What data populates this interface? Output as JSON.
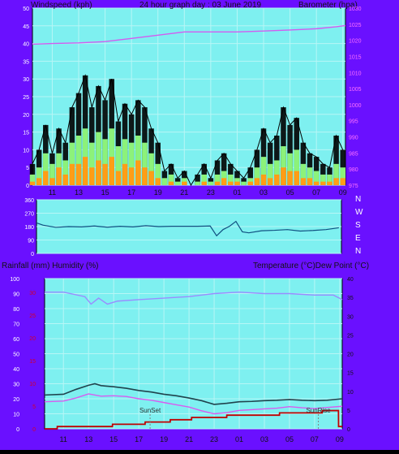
{
  "header": {
    "left_title": "Windspeed (kph)",
    "center_title": "24 hour graph day : 03 June 2019",
    "right_title": "Barometer (hpa)"
  },
  "colors": {
    "page_bg": "#6a10ff",
    "plot_bg": "#7ef0f0",
    "grid": "#b7f6f6",
    "gust": "#000000",
    "wind_avg": "#8cf27a",
    "wind_low": "#ff9d16",
    "barometer": "#d25cf0",
    "direction": "#104f80",
    "humidity": "#d85cf0",
    "temperature": "#20434d",
    "dewpoint": "#9a8cff",
    "rainfall": "#c00000",
    "axis_text": "#ffffff",
    "rain_axis_text": "#d0002a",
    "dark_text": "#111111"
  },
  "chart_data": [
    {
      "type": "line",
      "title": "24 hour graph day : 03 June 2019",
      "ylabel_left": "Windspeed (kph)",
      "ylabel_right": "Barometer (hpa)",
      "x_ticks": [
        "11",
        "13",
        "15",
        "17",
        "19",
        "21",
        "23",
        "01",
        "03",
        "05",
        "07",
        "09"
      ],
      "left_ticks": [
        "0",
        "5",
        "10",
        "15",
        "20",
        "25",
        "30",
        "35",
        "40",
        "45",
        "50"
      ],
      "right_ticks": [
        "975",
        "980",
        "985",
        "990",
        "995",
        "1000",
        "1005",
        "1010",
        "1015",
        "1020",
        "1025",
        "1030"
      ],
      "left_ylim": [
        0,
        50
      ],
      "right_ylim": [
        975,
        1030
      ],
      "xlim": [
        9.5,
        33.2
      ],
      "series": [
        {
          "name": "Gust",
          "x": [
            9.5,
            10.0,
            10.5,
            11.0,
            11.5,
            12.0,
            12.5,
            13.0,
            13.5,
            14.0,
            14.5,
            15.0,
            15.5,
            16.0,
            16.5,
            17.0,
            17.5,
            18.0,
            18.5,
            19.0,
            19.5,
            20.0,
            20.5,
            21.0,
            21.5,
            22.0,
            22.5,
            23.0,
            23.5,
            24.0,
            24.5,
            25.0,
            25.5,
            26.0,
            26.5,
            27.0,
            27.5,
            28.0,
            28.5,
            29.0,
            29.5,
            30.0,
            30.5,
            31.0,
            31.5,
            32.0,
            32.5,
            33.0
          ],
          "values": [
            6,
            10,
            17,
            9,
            16,
            12,
            22,
            26,
            31,
            22,
            28,
            24,
            30,
            18,
            23,
            20,
            24,
            22,
            16,
            12,
            4,
            6,
            2,
            4,
            0,
            3,
            6,
            2,
            7,
            9,
            6,
            4,
            2,
            5,
            10,
            16,
            12,
            14,
            22,
            17,
            19,
            12,
            9,
            8,
            6,
            5,
            14,
            10
          ]
        },
        {
          "name": "Average",
          "x": [
            9.5,
            10.0,
            10.5,
            11.0,
            11.5,
            12.0,
            12.5,
            13.0,
            13.5,
            14.0,
            14.5,
            15.0,
            15.5,
            16.0,
            16.5,
            17.0,
            17.5,
            18.0,
            18.5,
            19.0,
            19.5,
            20.0,
            20.5,
            21.0,
            21.5,
            22.0,
            22.5,
            23.0,
            23.5,
            24.0,
            24.5,
            25.0,
            25.5,
            26.0,
            26.5,
            27.0,
            27.5,
            28.0,
            28.5,
            29.0,
            29.5,
            30.0,
            30.5,
            31.0,
            31.5,
            32.0,
            32.5,
            33.0
          ],
          "values": [
            3,
            5,
            9,
            6,
            9,
            7,
            12,
            14,
            16,
            12,
            15,
            13,
            16,
            11,
            13,
            12,
            14,
            12,
            9,
            6,
            2,
            3,
            1,
            2,
            0,
            1,
            3,
            1,
            3,
            4,
            3,
            2,
            1,
            2,
            5,
            8,
            6,
            7,
            11,
            9,
            10,
            6,
            5,
            4,
            3,
            3,
            6,
            5
          ]
        },
        {
          "name": "Low",
          "x": [
            9.5,
            10.0,
            10.5,
            11.0,
            11.5,
            12.0,
            12.5,
            13.0,
            13.5,
            14.0,
            14.5,
            15.0,
            15.5,
            16.0,
            16.5,
            17.0,
            17.5,
            18.0,
            18.5,
            19.0,
            19.5,
            20.0,
            20.5,
            21.0,
            21.5,
            22.0,
            22.5,
            23.0,
            23.5,
            24.0,
            24.5,
            25.0,
            25.5,
            26.0,
            26.5,
            27.0,
            27.5,
            28.0,
            28.5,
            29.0,
            29.5,
            30.0,
            30.5,
            31.0,
            31.5,
            32.0,
            32.5,
            33.0
          ],
          "values": [
            1,
            2,
            4,
            2,
            5,
            3,
            6,
            6,
            8,
            5,
            7,
            6,
            8,
            4,
            6,
            5,
            7,
            5,
            4,
            2,
            0,
            1,
            0,
            1,
            0,
            0,
            1,
            0,
            1,
            2,
            1,
            1,
            0,
            1,
            2,
            3,
            2,
            3,
            5,
            4,
            4,
            2,
            2,
            1,
            1,
            1,
            2,
            2
          ]
        },
        {
          "name": "Barometer",
          "axis": "right",
          "x": [
            9.5,
            11,
            13,
            15,
            17,
            19,
            21,
            23,
            25,
            27,
            29,
            31,
            32.5,
            33.2
          ],
          "values": [
            1018.8,
            1019.0,
            1019.2,
            1019.6,
            1020.6,
            1021.6,
            1022.6,
            1022.6,
            1022.6,
            1022.9,
            1023.2,
            1023.6,
            1024.2,
            1024.6
          ]
        }
      ]
    },
    {
      "type": "line",
      "title": "",
      "right_labels": [
        "N",
        "W",
        "S",
        "E",
        "N"
      ],
      "left_ticks": [
        "0",
        "90",
        "180",
        "270",
        "360"
      ],
      "ylim": [
        0,
        360
      ],
      "xlim": [
        9.5,
        33.2
      ],
      "series": [
        {
          "name": "Direction",
          "x": [
            9.5,
            10.0,
            11.0,
            12.0,
            13.0,
            14.0,
            15.0,
            16.0,
            17.0,
            18.0,
            19.0,
            20.0,
            21.0,
            22.0,
            23.0,
            23.5,
            24.0,
            24.5,
            25.0,
            25.5,
            26.0,
            27.0,
            28.0,
            29.0,
            30.0,
            31.0,
            32.0,
            33.0
          ],
          "values": [
            205,
            190,
            175,
            180,
            178,
            184,
            176,
            182,
            178,
            186,
            180,
            182,
            182,
            182,
            184,
            118,
            160,
            182,
            215,
            145,
            138,
            152,
            155,
            160,
            150,
            154,
            160,
            172
          ]
        }
      ]
    },
    {
      "type": "line",
      "title": "",
      "ylabel_left": "Rainfall (mm)  Humidity (%)",
      "ylabel_right": "Temperature (°C)Dew Point (°C)",
      "x_ticks": [
        "11",
        "13",
        "15",
        "17",
        "19",
        "21",
        "23",
        "01",
        "03",
        "05",
        "07",
        "09"
      ],
      "humidity_ticks": [
        "0",
        "10",
        "20",
        "30",
        "40",
        "50",
        "60",
        "70",
        "80",
        "90",
        "100"
      ],
      "rain_ticks": [
        "0",
        "5",
        "10",
        "15",
        "20",
        "25",
        "30"
      ],
      "temp_ticks": [
        "0",
        "5",
        "10",
        "15",
        "20",
        "25",
        "30",
        "35",
        "40"
      ],
      "humidity_ylim": [
        0,
        100
      ],
      "rain_ylim": [
        0,
        33
      ],
      "temp_ylim": [
        0,
        40
      ],
      "xlim": [
        9.5,
        33.2
      ],
      "annotations": [
        {
          "text": "SunSet",
          "x": 17.9
        },
        {
          "text": "SunRise",
          "x": 31.3
        }
      ],
      "series": [
        {
          "name": "Humidity",
          "axis": "humidity",
          "x": [
            9.5,
            11,
            12.7,
            13.2,
            13.8,
            14.5,
            15.3,
            17,
            19,
            21,
            23,
            25,
            27,
            29,
            31,
            32.5,
            33.2
          ],
          "values": [
            91,
            91,
            88,
            83,
            87,
            83,
            85,
            86,
            87,
            88,
            90,
            91,
            90,
            90,
            89,
            89,
            86
          ]
        },
        {
          "name": "Temperature",
          "axis": "temperature",
          "x": [
            9.5,
            11,
            12,
            13,
            13.5,
            14,
            15,
            16,
            17,
            18,
            19,
            20,
            21,
            22,
            23,
            24,
            25,
            26,
            27,
            28,
            29,
            30,
            31,
            32,
            33.2
          ],
          "values": [
            9.0,
            9.2,
            10.5,
            11.6,
            12.0,
            11.5,
            11.2,
            10.8,
            10.2,
            9.8,
            9.2,
            8.8,
            8.2,
            7.5,
            6.5,
            6.8,
            7.2,
            7.3,
            7.5,
            7.6,
            7.8,
            7.6,
            7.5,
            7.6,
            8.0
          ]
        },
        {
          "name": "Dew Point",
          "axis": "temperature",
          "x": [
            9.5,
            11,
            12,
            13,
            14,
            15,
            16,
            17,
            18,
            19,
            20,
            21,
            22,
            23,
            24,
            25,
            26,
            27,
            28,
            29,
            30,
            31,
            32,
            33.2
          ],
          "values": [
            7.2,
            7.4,
            8.2,
            9.3,
            8.7,
            8.8,
            8.6,
            8.0,
            7.6,
            7.0,
            6.4,
            5.8,
            4.8,
            4.0,
            4.3,
            4.9,
            5.1,
            5.3,
            5.5,
            5.9,
            5.6,
            5.4,
            5.7,
            6.0
          ]
        },
        {
          "name": "Rainfall",
          "axis": "rain",
          "x": [
            9.5,
            10.5,
            10.51,
            14.9,
            14.91,
            17.5,
            17.51,
            19.5,
            19.51,
            21.2,
            21.21,
            24.0,
            24.01,
            28.2,
            28.21,
            31.6,
            31.61,
            32.9,
            32.91,
            33.2
          ],
          "values": [
            0,
            0,
            0.5,
            0.5,
            1.0,
            1.0,
            1.5,
            1.5,
            2.0,
            2.0,
            2.5,
            2.5,
            3.0,
            3.0,
            3.5,
            3.5,
            4.0,
            4.0,
            0.5,
            0.5
          ]
        }
      ]
    }
  ]
}
